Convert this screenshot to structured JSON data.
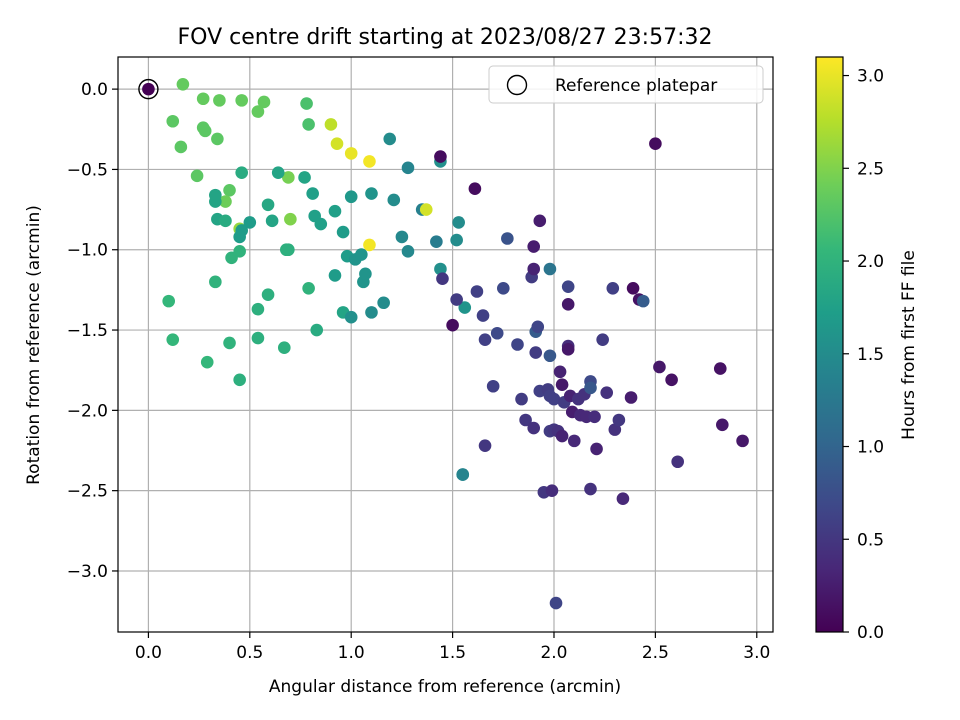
{
  "chart_data": {
    "type": "scatter",
    "title": "FOV centre drift starting at 2023/08/27 23:57:32",
    "xlabel": "Angular distance from reference (arcmin)",
    "ylabel": "Rotation from reference (arcmin)",
    "xlim": [
      -0.15,
      3.08
    ],
    "ylim": [
      -3.38,
      0.2
    ],
    "xticks": [
      0.0,
      0.5,
      1.0,
      1.5,
      2.0,
      2.5,
      3.0
    ],
    "xtick_labels": [
      "0.0",
      "0.5",
      "1.0",
      "1.5",
      "2.0",
      "2.5",
      "3.0"
    ],
    "yticks": [
      0.0,
      -0.5,
      -1.0,
      -1.5,
      -2.0,
      -2.5,
      -3.0
    ],
    "ytick_labels": [
      "0.0",
      "−0.5",
      "−1.0",
      "−1.5",
      "−2.0",
      "−2.5",
      "−3.0"
    ],
    "grid": true,
    "legend": {
      "placement": "top-right",
      "label": "Reference platepar"
    },
    "reference_point": {
      "x": 0.0,
      "y": 0.0
    },
    "colorbar": {
      "label": "Hours from first FF file",
      "range": [
        0.0,
        3.1
      ],
      "ticks": [
        0.0,
        0.5,
        1.0,
        1.5,
        2.0,
        2.5,
        3.0
      ],
      "tick_labels": [
        "0.0",
        "0.5",
        "1.0",
        "1.5",
        "2.0",
        "2.5",
        "3.0"
      ],
      "colormap": [
        "#440154",
        "#482878",
        "#3e4989",
        "#31688e",
        "#26828e",
        "#1f9e89",
        "#35b779",
        "#6ece58",
        "#b5de2b",
        "#fde725"
      ]
    },
    "points": [
      [
        0.0,
        0.0,
        0.0
      ],
      [
        0.17,
        0.03,
        2.35
      ],
      [
        0.27,
        -0.06,
        2.35
      ],
      [
        0.35,
        -0.07,
        2.35
      ],
      [
        0.46,
        -0.07,
        2.35
      ],
      [
        0.57,
        -0.08,
        2.35
      ],
      [
        0.54,
        -0.14,
        2.35
      ],
      [
        0.12,
        -0.2,
        2.3
      ],
      [
        0.27,
        -0.24,
        2.3
      ],
      [
        0.28,
        -0.26,
        2.3
      ],
      [
        0.34,
        -0.31,
        2.3
      ],
      [
        0.16,
        -0.36,
        2.3
      ],
      [
        0.78,
        -0.09,
        2.2
      ],
      [
        0.79,
        -0.22,
        2.2
      ],
      [
        0.9,
        -0.22,
        2.8
      ],
      [
        0.93,
        -0.34,
        2.9
      ],
      [
        1.0,
        -0.4,
        3.0
      ],
      [
        1.09,
        -0.45,
        3.05
      ],
      [
        0.24,
        -0.54,
        2.3
      ],
      [
        0.4,
        -0.63,
        2.3
      ],
      [
        0.38,
        -0.7,
        2.4
      ],
      [
        0.69,
        -0.55,
        2.45
      ],
      [
        0.7,
        -0.81,
        2.5
      ],
      [
        0.45,
        -0.87,
        2.6
      ],
      [
        0.33,
        -0.66,
        1.8
      ],
      [
        0.33,
        -0.7,
        1.8
      ],
      [
        0.34,
        -0.81,
        1.8
      ],
      [
        0.38,
        -0.82,
        1.9
      ],
      [
        0.46,
        -0.52,
        1.9
      ],
      [
        0.46,
        -0.88,
        1.7
      ],
      [
        0.45,
        -0.92,
        1.7
      ],
      [
        0.5,
        -0.83,
        1.7
      ],
      [
        0.59,
        -0.72,
        1.85
      ],
      [
        0.61,
        -0.82,
        1.8
      ],
      [
        0.64,
        -0.52,
        1.8
      ],
      [
        0.77,
        -0.55,
        1.8
      ],
      [
        0.81,
        -0.65,
        1.75
      ],
      [
        0.82,
        -0.79,
        1.75
      ],
      [
        0.85,
        -0.84,
        1.75
      ],
      [
        0.92,
        -0.76,
        1.75
      ],
      [
        0.45,
        -1.01,
        2.0
      ],
      [
        0.41,
        -1.05,
        2.0
      ],
      [
        0.68,
        -1.0,
        1.95
      ],
      [
        0.69,
        -1.0,
        1.95
      ],
      [
        0.59,
        -1.28,
        1.95
      ],
      [
        0.54,
        -1.37,
        1.95
      ],
      [
        0.79,
        -1.24,
        2.0
      ],
      [
        0.33,
        -1.2,
        2.0
      ],
      [
        0.1,
        -1.32,
        2.05
      ],
      [
        0.12,
        -1.56,
        2.05
      ],
      [
        0.4,
        -1.58,
        2.0
      ],
      [
        0.54,
        -1.55,
        1.95
      ],
      [
        0.29,
        -1.7,
        2.05
      ],
      [
        0.45,
        -1.81,
        1.95
      ],
      [
        0.67,
        -1.61,
        1.95
      ],
      [
        0.83,
        -1.5,
        1.9
      ],
      [
        0.96,
        -1.39,
        1.8
      ],
      [
        0.98,
        -1.04,
        1.7
      ],
      [
        0.96,
        -0.89,
        1.7
      ],
      [
        0.92,
        -1.16,
        1.7
      ],
      [
        1.0,
        -0.67,
        1.65
      ],
      [
        1.02,
        -1.06,
        1.6
      ],
      [
        1.05,
        -1.03,
        1.6
      ],
      [
        1.06,
        -1.2,
        1.6
      ],
      [
        1.07,
        -1.15,
        1.6
      ],
      [
        1.1,
        -0.65,
        1.6
      ],
      [
        1.1,
        -1.39,
        1.5
      ],
      [
        1.0,
        -1.42,
        1.55
      ],
      [
        1.16,
        -1.33,
        1.5
      ],
      [
        1.19,
        -0.31,
        1.5
      ],
      [
        1.21,
        -0.69,
        1.5
      ],
      [
        1.25,
        -0.92,
        1.45
      ],
      [
        1.28,
        -1.01,
        1.45
      ],
      [
        1.28,
        -0.49,
        1.4
      ],
      [
        1.35,
        -0.75,
        1.35
      ],
      [
        1.37,
        -0.75,
        2.9
      ],
      [
        1.09,
        -0.97,
        3.05
      ],
      [
        1.42,
        -0.95,
        1.3
      ],
      [
        1.44,
        -0.45,
        1.55
      ],
      [
        1.44,
        -1.12,
        1.55
      ],
      [
        1.53,
        -0.83,
        1.5
      ],
      [
        1.52,
        -0.94,
        1.5
      ],
      [
        1.55,
        -2.4,
        1.5
      ],
      [
        1.56,
        -1.36,
        1.6
      ],
      [
        1.55,
        -2.4,
        1.4
      ],
      [
        1.44,
        -0.42,
        0.1
      ],
      [
        1.45,
        -1.18,
        0.5
      ],
      [
        1.5,
        -1.47,
        0.1
      ],
      [
        1.52,
        -1.31,
        0.55
      ],
      [
        1.61,
        -0.62,
        0.1
      ],
      [
        1.62,
        -1.26,
        0.6
      ],
      [
        1.65,
        -1.41,
        0.6
      ],
      [
        1.66,
        -1.56,
        0.6
      ],
      [
        1.66,
        -2.22,
        0.5
      ],
      [
        1.7,
        -1.85,
        0.6
      ],
      [
        1.72,
        -1.52,
        0.7
      ],
      [
        1.75,
        -1.24,
        0.7
      ],
      [
        1.77,
        -0.93,
        0.8
      ],
      [
        1.82,
        -1.59,
        0.65
      ],
      [
        1.84,
        -1.93,
        0.55
      ],
      [
        1.86,
        -2.06,
        0.5
      ],
      [
        1.89,
        -1.17,
        0.55
      ],
      [
        1.9,
        -0.98,
        0.25
      ],
      [
        1.9,
        -1.12,
        0.3
      ],
      [
        1.9,
        -2.11,
        0.45
      ],
      [
        1.91,
        -1.51,
        0.9
      ],
      [
        1.91,
        -1.64,
        0.55
      ],
      [
        1.92,
        -1.48,
        0.65
      ],
      [
        1.93,
        -0.82,
        0.25
      ],
      [
        1.93,
        -1.88,
        0.6
      ],
      [
        1.95,
        -2.51,
        0.5
      ],
      [
        1.97,
        -1.87,
        0.55
      ],
      [
        1.98,
        -1.91,
        0.6
      ],
      [
        1.98,
        -1.12,
        1.2
      ],
      [
        1.98,
        -1.66,
        0.85
      ],
      [
        1.98,
        -2.13,
        0.55
      ],
      [
        1.99,
        -2.5,
        0.4
      ],
      [
        2.0,
        -1.93,
        0.6
      ],
      [
        2.0,
        -2.12,
        0.5
      ],
      [
        2.01,
        -3.2,
        0.65
      ],
      [
        2.02,
        -2.13,
        0.45
      ],
      [
        2.03,
        -1.76,
        0.3
      ],
      [
        2.04,
        -1.84,
        0.2
      ],
      [
        2.04,
        -2.16,
        0.3
      ],
      [
        2.05,
        -1.95,
        0.55
      ],
      [
        2.07,
        -1.23,
        0.65
      ],
      [
        2.07,
        -1.34,
        0.2
      ],
      [
        2.07,
        -1.6,
        0.4
      ],
      [
        2.07,
        -1.62,
        0.2
      ],
      [
        2.08,
        -1.91,
        0.3
      ],
      [
        2.09,
        -2.01,
        0.25
      ],
      [
        2.1,
        -2.19,
        0.35
      ],
      [
        2.12,
        -1.93,
        0.45
      ],
      [
        2.13,
        -2.03,
        0.35
      ],
      [
        2.15,
        -1.9,
        0.45
      ],
      [
        2.16,
        -2.04,
        0.35
      ],
      [
        2.18,
        -1.82,
        0.7
      ],
      [
        2.18,
        -1.86,
        0.85
      ],
      [
        2.18,
        -2.49,
        0.45
      ],
      [
        2.2,
        -2.04,
        0.4
      ],
      [
        2.21,
        -2.24,
        0.3
      ],
      [
        2.24,
        -1.56,
        0.55
      ],
      [
        2.26,
        -1.89,
        0.45
      ],
      [
        2.29,
        -1.24,
        0.6
      ],
      [
        2.3,
        -2.12,
        0.45
      ],
      [
        2.32,
        -2.06,
        0.5
      ],
      [
        2.34,
        -2.55,
        0.35
      ],
      [
        2.38,
        -1.92,
        0.25
      ],
      [
        2.39,
        -1.24,
        0.1
      ],
      [
        2.42,
        -1.31,
        0.15
      ],
      [
        2.44,
        -1.32,
        0.9
      ],
      [
        2.5,
        -0.34,
        0.1
      ],
      [
        2.52,
        -1.73,
        0.2
      ],
      [
        2.58,
        -1.81,
        0.15
      ],
      [
        2.61,
        -2.32,
        0.45
      ],
      [
        2.82,
        -1.74,
        0.15
      ],
      [
        2.83,
        -2.09,
        0.2
      ],
      [
        2.93,
        -2.19,
        0.2
      ]
    ]
  }
}
